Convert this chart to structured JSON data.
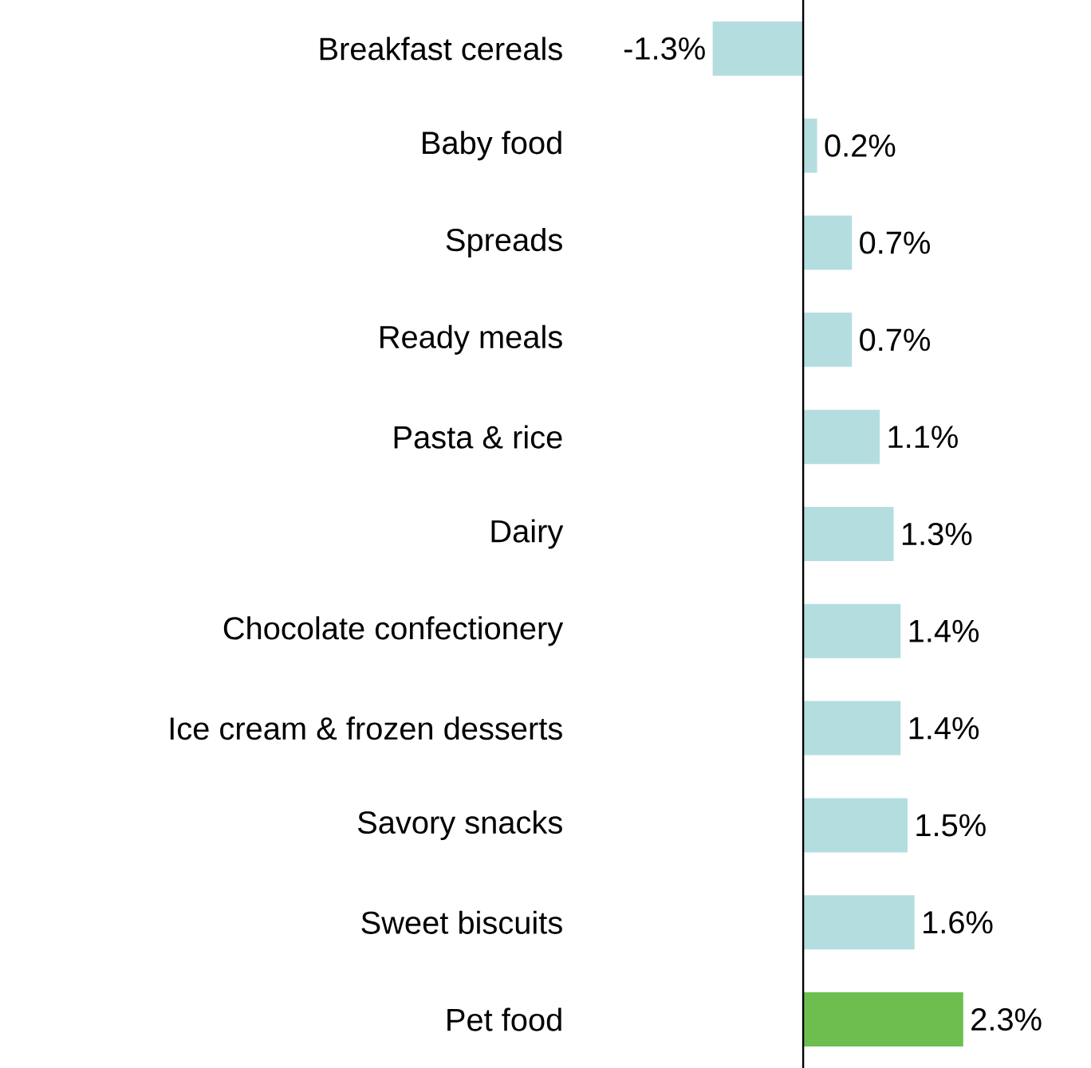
{
  "chart_data": {
    "type": "bar",
    "orientation": "horizontal",
    "categories": [
      "Breakfast cereals",
      "Baby food",
      "Spreads",
      "Ready meals",
      "Pasta & rice",
      "Dairy",
      "Chocolate confectionery",
      "Ice cream & frozen desserts",
      "Savory snacks",
      "Sweet biscuits",
      "Pet food"
    ],
    "values": [
      -1.3,
      0.2,
      0.7,
      0.7,
      1.1,
      1.3,
      1.4,
      1.4,
      1.5,
      1.6,
      2.3
    ],
    "value_labels": [
      "-1.3%",
      "0.2%",
      "0.7%",
      "0.7%",
      "1.1%",
      "1.3%",
      "1.4%",
      "1.4%",
      "1.5%",
      "1.6%",
      "2.3%"
    ],
    "colors": [
      "#b4dde0",
      "#b4dde0",
      "#b4dde0",
      "#b4dde0",
      "#b4dde0",
      "#b4dde0",
      "#b4dde0",
      "#b4dde0",
      "#b4dde0",
      "#b4dde0",
      "#6cbf4e"
    ]
  }
}
